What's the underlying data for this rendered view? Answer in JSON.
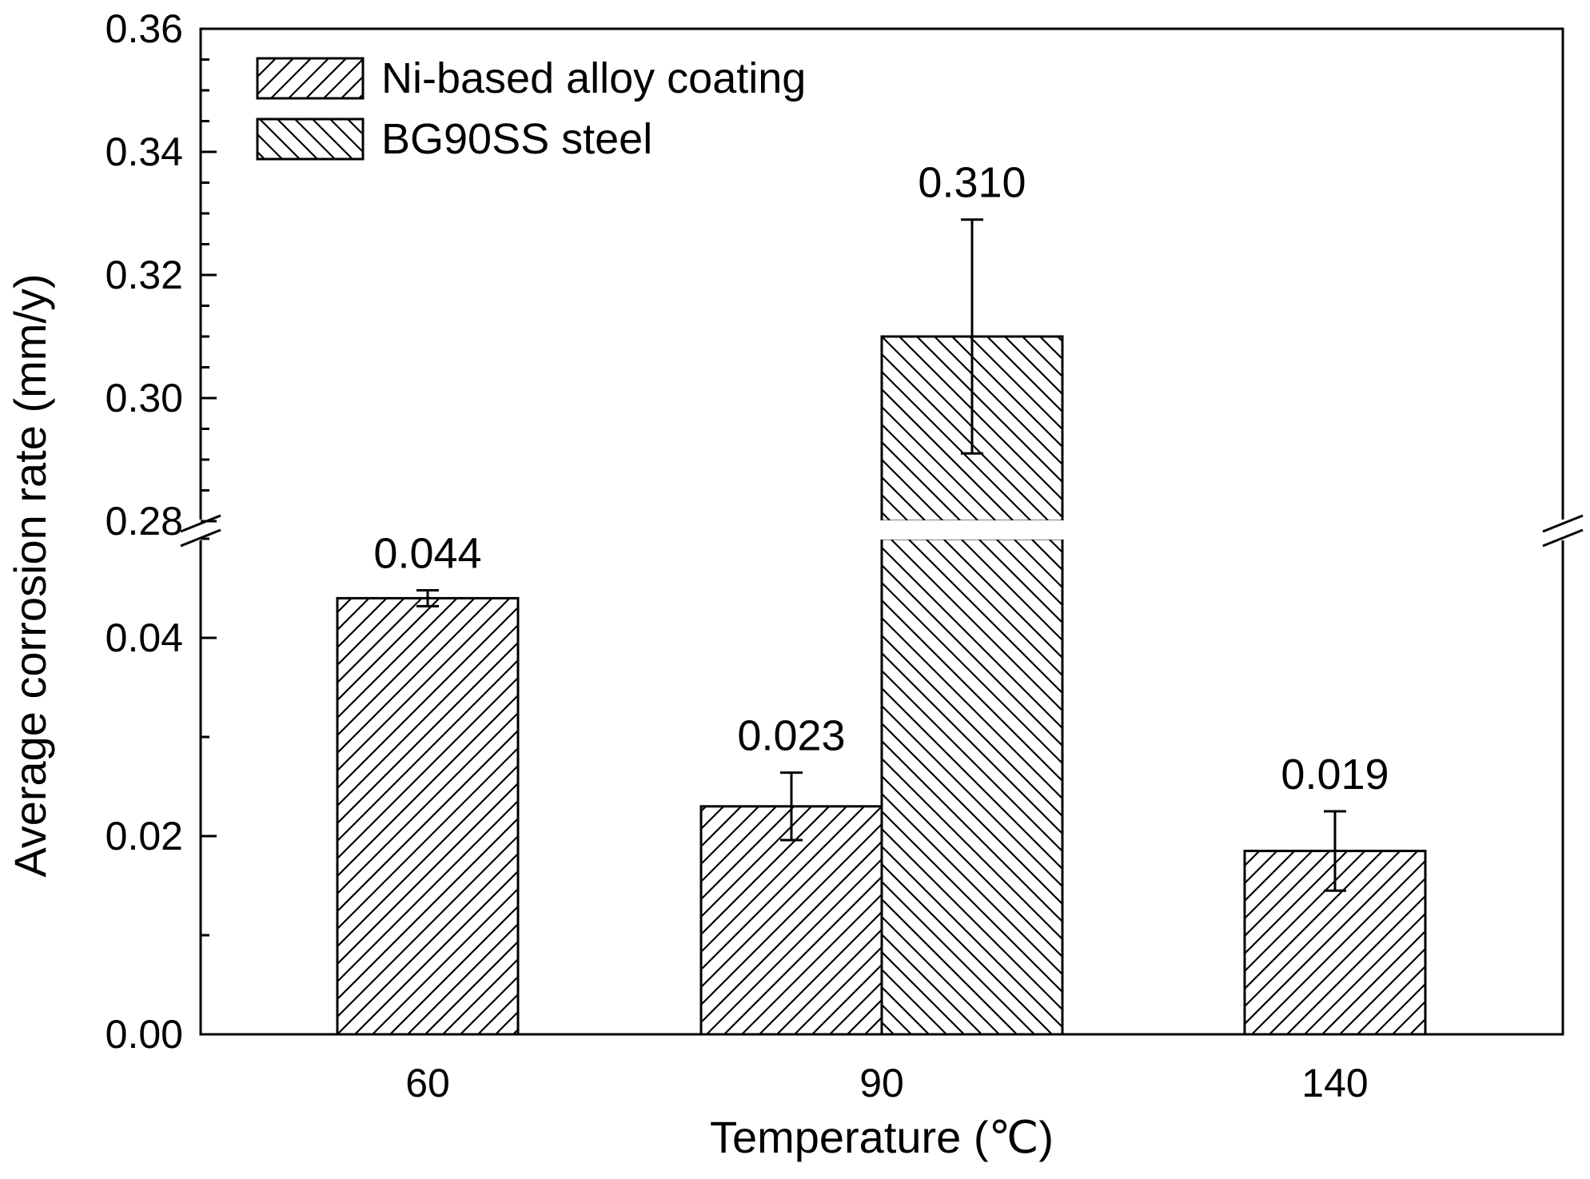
{
  "chart_data": {
    "type": "bar",
    "xlabel": "Temperature (℃)",
    "ylabel": "Average corrosion rate (mm/y)",
    "categories": [
      "60",
      "90",
      "140"
    ],
    "series": [
      {
        "name": "Ni-based alloy coating",
        "pattern": "diagonal-up",
        "values": [
          0.044,
          0.023,
          0.0185
        ],
        "error": [
          0.0008,
          0.0034,
          0.004
        ],
        "labels": [
          "0.044",
          "0.023",
          "0.019"
        ]
      },
      {
        "name": "BG90SS steel",
        "pattern": "diagonal-down",
        "values": [
          null,
          0.31,
          null
        ],
        "error": [
          null,
          0.019,
          null
        ],
        "labels": [
          null,
          "0.310",
          null
        ]
      }
    ],
    "y_axis_broken": true,
    "y_lower_range": [
      0,
      0.05
    ],
    "y_upper_range": [
      0.28,
      0.36
    ],
    "y_lower_ticks": [
      "0.00",
      "0.02",
      "0.04"
    ],
    "y_upper_ticks": [
      "0.28",
      "0.30",
      "0.32",
      "0.34",
      "0.36"
    ],
    "legend_position": "top-left"
  }
}
